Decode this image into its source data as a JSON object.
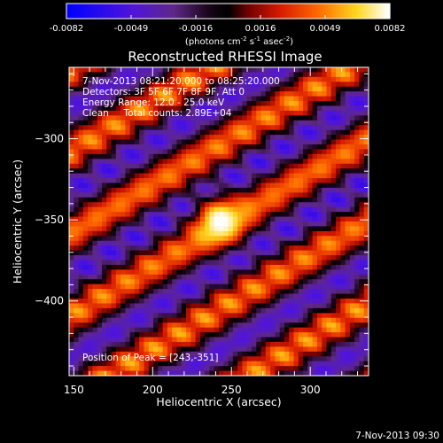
{
  "chart_data": {
    "type": "heatmap",
    "title": "Reconstructed RHESSI Image",
    "xlabel": "Heliocentric X (arcsec)",
    "ylabel": "Heliocentric Y (arcsec)",
    "xlim": [
      147,
      337
    ],
    "ylim": [
      -446,
      -256
    ],
    "xticks": [
      150,
      200,
      250,
      300
    ],
    "yticks": [
      -300,
      -350,
      -400
    ],
    "colorbar": {
      "min": -0.0082,
      "max": 0.0082,
      "ticks": [
        "-0.0082",
        "-0.0049",
        "-0.0016",
        "0.0016",
        "0.0049",
        "0.0082"
      ],
      "label_main": "(photons cm",
      "label_sup1": "-2",
      "label_mid1": " s",
      "label_sup2": "-1",
      "label_mid2": " asec",
      "label_sup3": "-2",
      "label_end": ")"
    },
    "annotations": {
      "time_range": "7-Nov-2013 08:21:20.000 to 08:25:20.000",
      "detectors": "Detectors: 3F 5F 6F 7F 8F 9F, Att 0",
      "energy": "Energy Range: 12.0 - 25.0 keV",
      "clean": "Clean     Total counts: 2.89E+04",
      "peak": "Position of Peak = [243,-351]"
    },
    "peak_position": [
      243,
      -351
    ],
    "peak_value": 0.0082,
    "stripe_angle_deg": 30,
    "stripe_period_arcsec": 44
  },
  "footer": {
    "timestamp": "7-Nov-2013 09:30"
  }
}
